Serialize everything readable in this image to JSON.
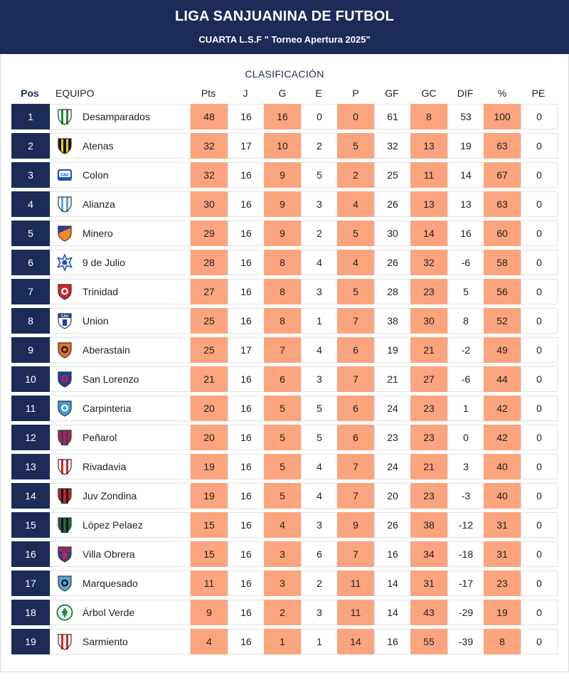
{
  "header": {
    "title": "LIGA SANJUANINA DE FUTBOL",
    "subtitle": "CUARTA L.S.F \" Torneo Apertura 2025\""
  },
  "table": {
    "section_title": "CLASIFICACIÓN",
    "columns": [
      "Pos",
      "EQUIPO",
      "Pts",
      "J",
      "G",
      "E",
      "P",
      "GF",
      "GC",
      "DIF",
      "%",
      "PE"
    ],
    "rows": [
      {
        "pos": "1",
        "team": "Desamparados",
        "pts": "48",
        "j": "16",
        "g": "16",
        "e": "0",
        "p": "0",
        "gf": "61",
        "gc": "8",
        "dif": "53",
        "pct": "100",
        "pe": "0",
        "crest": {
          "shape": "shield",
          "primary": "#ffffff",
          "secondary": "#1d8a3c",
          "pattern": "stripes-v"
        }
      },
      {
        "pos": "2",
        "team": "Atenas",
        "pts": "32",
        "j": "17",
        "g": "10",
        "e": "2",
        "p": "5",
        "gf": "32",
        "gc": "13",
        "dif": "19",
        "pct": "63",
        "pe": "0",
        "crest": {
          "shape": "shield",
          "primary": "#111111",
          "secondary": "#f2d21b",
          "pattern": "stripes-v"
        }
      },
      {
        "pos": "3",
        "team": "Colon",
        "pts": "32",
        "j": "16",
        "g": "9",
        "e": "5",
        "p": "2",
        "gf": "25",
        "gc": "11",
        "dif": "14",
        "pct": "67",
        "pe": "0",
        "crest": {
          "shape": "badge",
          "primary": "#1f4fb8",
          "secondary": "#ffffff",
          "pattern": "text",
          "text": "cac"
        }
      },
      {
        "pos": "4",
        "team": "Alianza",
        "pts": "30",
        "j": "16",
        "g": "9",
        "e": "3",
        "p": "4",
        "gf": "26",
        "gc": "13",
        "dif": "13",
        "pct": "63",
        "pe": "0",
        "crest": {
          "shape": "shield",
          "primary": "#ffffff",
          "secondary": "#5aa9dc",
          "pattern": "stripes-v"
        }
      },
      {
        "pos": "5",
        "team": "Minero",
        "pts": "29",
        "j": "16",
        "g": "9",
        "e": "2",
        "p": "5",
        "gf": "30",
        "gc": "14",
        "dif": "16",
        "pct": "60",
        "pe": "0",
        "crest": {
          "shape": "shield",
          "primary": "#2d3f9e",
          "secondary": "#f08a24",
          "pattern": "diag"
        }
      },
      {
        "pos": "6",
        "team": "9 de Julio",
        "pts": "28",
        "j": "16",
        "g": "8",
        "e": "4",
        "p": "4",
        "gf": "26",
        "gc": "32",
        "dif": "-6",
        "pct": "58",
        "pe": "0",
        "crest": {
          "shape": "star",
          "primary": "#ffffff",
          "secondary": "#1f4fb8",
          "pattern": "plain"
        }
      },
      {
        "pos": "7",
        "team": "Trinidad",
        "pts": "27",
        "j": "16",
        "g": "8",
        "e": "3",
        "p": "5",
        "gf": "28",
        "gc": "23",
        "dif": "5",
        "pct": "56",
        "pe": "0",
        "crest": {
          "shape": "shield",
          "primary": "#d6232a",
          "secondary": "#ffffff",
          "pattern": "center"
        }
      },
      {
        "pos": "8",
        "team": "Union",
        "pts": "25",
        "j": "16",
        "g": "8",
        "e": "1",
        "p": "7",
        "gf": "38",
        "gc": "30",
        "dif": "8",
        "pct": "52",
        "pe": "0",
        "crest": {
          "shape": "shield",
          "primary": "#ffffff",
          "secondary": "#1f3f9e",
          "pattern": "text",
          "text": "CAU"
        }
      },
      {
        "pos": "9",
        "team": "Aberastain",
        "pts": "25",
        "j": "17",
        "g": "7",
        "e": "4",
        "p": "6",
        "gf": "19",
        "gc": "21",
        "dif": "-2",
        "pct": "49",
        "pe": "0",
        "crest": {
          "shape": "shield",
          "primary": "#e8702a",
          "secondary": "#222222",
          "pattern": "center"
        }
      },
      {
        "pos": "10",
        "team": "San Lorenzo",
        "pts": "21",
        "j": "16",
        "g": "6",
        "e": "3",
        "p": "7",
        "gf": "21",
        "gc": "27",
        "dif": "-6",
        "pct": "44",
        "pe": "0",
        "crest": {
          "shape": "shield",
          "primary": "#1f3f9e",
          "secondary": "#c8202e",
          "pattern": "center"
        }
      },
      {
        "pos": "11",
        "team": "Carpinteria",
        "pts": "20",
        "j": "16",
        "g": "5",
        "e": "5",
        "p": "6",
        "gf": "24",
        "gc": "23",
        "dif": "1",
        "pct": "42",
        "pe": "0",
        "crest": {
          "shape": "shield",
          "primary": "#3a9ddc",
          "secondary": "#ffffff",
          "pattern": "center"
        }
      },
      {
        "pos": "12",
        "team": "Peñarol",
        "pts": "20",
        "j": "16",
        "g": "5",
        "e": "5",
        "p": "6",
        "gf": "23",
        "gc": "23",
        "dif": "0",
        "pct": "42",
        "pe": "0",
        "crest": {
          "shape": "shield",
          "primary": "#c8202e",
          "secondary": "#1f3f9e",
          "pattern": "stripes-v"
        }
      },
      {
        "pos": "13",
        "team": "Rivadavia",
        "pts": "19",
        "j": "16",
        "g": "5",
        "e": "4",
        "p": "7",
        "gf": "24",
        "gc": "21",
        "dif": "3",
        "pct": "40",
        "pe": "0",
        "crest": {
          "shape": "shield",
          "primary": "#ffffff",
          "secondary": "#d6232a",
          "pattern": "stripes-v"
        }
      },
      {
        "pos": "14",
        "team": "Juv Zondina",
        "pts": "19",
        "j": "16",
        "g": "5",
        "e": "4",
        "p": "7",
        "gf": "20",
        "gc": "23",
        "dif": "-3",
        "pct": "40",
        "pe": "0",
        "crest": {
          "shape": "shield",
          "primary": "#c8202e",
          "secondary": "#111111",
          "pattern": "stripes-v"
        }
      },
      {
        "pos": "15",
        "team": "López Pelaez",
        "pts": "15",
        "j": "16",
        "g": "4",
        "e": "3",
        "p": "9",
        "gf": "26",
        "gc": "38",
        "dif": "-12",
        "pct": "31",
        "pe": "0",
        "crest": {
          "shape": "shield",
          "primary": "#1d6b3a",
          "secondary": "#111111",
          "pattern": "stripes-v"
        }
      },
      {
        "pos": "16",
        "team": "Villa Obrera",
        "pts": "15",
        "j": "16",
        "g": "3",
        "e": "6",
        "p": "7",
        "gf": "16",
        "gc": "34",
        "dif": "-18",
        "pct": "31",
        "pe": "0",
        "crest": {
          "shape": "shield",
          "primary": "#2d3f9e",
          "secondary": "#d6232a",
          "pattern": "text",
          "text": "CAVO"
        }
      },
      {
        "pos": "17",
        "team": "Marquesado",
        "pts": "11",
        "j": "16",
        "g": "3",
        "e": "2",
        "p": "11",
        "gf": "14",
        "gc": "31",
        "dif": "-17",
        "pct": "23",
        "pe": "0",
        "crest": {
          "shape": "shield",
          "primary": "#5aa9dc",
          "secondary": "#111111",
          "pattern": "center"
        }
      },
      {
        "pos": "18",
        "team": "Árbol Verde",
        "pts": "9",
        "j": "16",
        "g": "2",
        "e": "3",
        "p": "11",
        "gf": "14",
        "gc": "43",
        "dif": "-29",
        "pct": "19",
        "pe": "0",
        "crest": {
          "shape": "round",
          "primary": "#ffffff",
          "secondary": "#1d8a3c",
          "pattern": "tree"
        }
      },
      {
        "pos": "19",
        "team": "Sarmiento",
        "pts": "4",
        "j": "16",
        "g": "1",
        "e": "1",
        "p": "14",
        "gf": "16",
        "gc": "55",
        "dif": "-39",
        "pct": "8",
        "pe": "0",
        "crest": {
          "shape": "shield",
          "primary": "#ffffff",
          "secondary": "#d6232a",
          "pattern": "stripes-v"
        }
      }
    ]
  },
  "colors": {
    "navy": "#1c2b57",
    "highlight": "#fba47e",
    "cell_border": "#e3e3e3"
  }
}
